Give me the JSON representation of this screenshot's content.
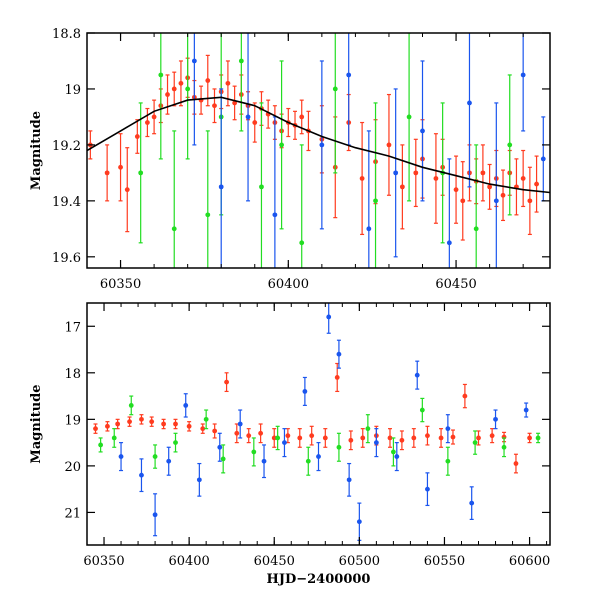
{
  "chart_data": [
    {
      "type": "scatter",
      "title": "",
      "xlabel": "",
      "ylabel": "Magnitude",
      "xlim": [
        60340,
        60478
      ],
      "ylim": [
        19.64,
        18.8
      ],
      "y_inverted": true,
      "xticks": [
        "60350",
        "60400",
        "60450"
      ],
      "yticks": [
        "18.8",
        "19",
        "19.2",
        "19.4",
        "19.6"
      ],
      "series": [
        {
          "color": "#ff3b1f",
          "points": [
            [
              60341,
              19.2,
              0.05
            ],
            [
              60346,
              19.3,
              0.1
            ],
            [
              60350,
              19.28,
              0.12
            ],
            [
              60352,
              19.36,
              0.15
            ],
            [
              60355,
              19.17,
              0.06
            ],
            [
              60358,
              19.12,
              0.05
            ],
            [
              60360,
              19.1,
              0.06
            ],
            [
              60362,
              19.06,
              0.06
            ],
            [
              60364,
              19.02,
              0.07
            ],
            [
              60366,
              19.0,
              0.06
            ],
            [
              60368,
              18.98,
              0.08
            ],
            [
              60370,
              18.96,
              0.07
            ],
            [
              60372,
              19.03,
              0.06
            ],
            [
              60374,
              19.04,
              0.05
            ],
            [
              60376,
              18.97,
              0.09
            ],
            [
              60378,
              19.06,
              0.06
            ],
            [
              60380,
              19.01,
              0.06
            ],
            [
              60382,
              18.98,
              0.08
            ],
            [
              60384,
              19.05,
              0.06
            ],
            [
              60386,
              19.02,
              0.07
            ],
            [
              60388,
              19.06,
              0.05
            ],
            [
              60390,
              19.12,
              0.07
            ],
            [
              60392,
              19.07,
              0.06
            ],
            [
              60394,
              19.09,
              0.05
            ],
            [
              60396,
              19.12,
              0.06
            ],
            [
              60398,
              19.15,
              0.06
            ],
            [
              60400,
              19.12,
              0.05
            ],
            [
              60402,
              19.13,
              0.05
            ],
            [
              60404,
              19.1,
              0.06
            ],
            [
              60406,
              19.15,
              0.07
            ],
            [
              60410,
              19.18,
              0.12
            ],
            [
              60414,
              19.28,
              0.18
            ],
            [
              60418,
              19.12,
              0.1
            ],
            [
              60422,
              19.32,
              0.2
            ],
            [
              60426,
              19.26,
              0.15
            ],
            [
              60430,
              19.2,
              0.18
            ],
            [
              60434,
              19.35,
              0.15
            ],
            [
              60438,
              19.3,
              0.12
            ],
            [
              60440,
              19.25,
              0.14
            ],
            [
              60444,
              19.32,
              0.16
            ],
            [
              60446,
              19.28,
              0.1
            ],
            [
              60450,
              19.36,
              0.12
            ],
            [
              60452,
              19.4,
              0.14
            ],
            [
              60454,
              19.3,
              0.1
            ],
            [
              60456,
              19.33,
              0.08
            ],
            [
              60458,
              19.3,
              0.1
            ],
            [
              60460,
              19.35,
              0.08
            ],
            [
              60462,
              19.32,
              0.1
            ],
            [
              60464,
              19.38,
              0.09
            ],
            [
              60466,
              19.3,
              0.08
            ],
            [
              60468,
              19.35,
              0.1
            ],
            [
              60470,
              19.32,
              0.1
            ],
            [
              60472,
              19.4,
              0.12
            ],
            [
              60474,
              19.34,
              0.1
            ]
          ]
        },
        {
          "color": "#22dd22",
          "points": [
            [
              60356,
              19.3,
              0.25
            ],
            [
              60362,
              18.95,
              0.3
            ],
            [
              60366,
              19.5,
              0.35
            ],
            [
              60370,
              19.0,
              0.25
            ],
            [
              60376,
              19.45,
              0.3
            ],
            [
              60380,
              19.1,
              0.35
            ],
            [
              60386,
              18.9,
              0.25
            ],
            [
              60392,
              19.35,
              0.3
            ],
            [
              60398,
              19.2,
              0.3
            ],
            [
              60404,
              19.55,
              0.35
            ],
            [
              60414,
              19.0,
              0.3
            ],
            [
              60426,
              19.4,
              0.35
            ],
            [
              60436,
              19.1,
              0.3
            ],
            [
              60446,
              19.3,
              0.25
            ],
            [
              60456,
              19.5,
              0.3
            ],
            [
              60466,
              19.2,
              0.25
            ]
          ]
        },
        {
          "color": "#1a55ee",
          "points": [
            [
              60372,
              18.9,
              0.3
            ],
            [
              60380,
              19.35,
              0.35
            ],
            [
              60388,
              19.1,
              0.3
            ],
            [
              60396,
              19.45,
              0.35
            ],
            [
              60410,
              19.2,
              0.3
            ],
            [
              60418,
              18.95,
              0.25
            ],
            [
              60424,
              19.5,
              0.35
            ],
            [
              60432,
              19.3,
              0.3
            ],
            [
              60440,
              19.15,
              0.25
            ],
            [
              60448,
              19.55,
              0.3
            ],
            [
              60454,
              19.05,
              0.3
            ],
            [
              60462,
              19.4,
              0.35
            ],
            [
              60470,
              18.95,
              0.2
            ],
            [
              60476,
              19.25,
              0.15
            ]
          ]
        }
      ],
      "model_curve": [
        [
          60340,
          19.22
        ],
        [
          60350,
          19.15
        ],
        [
          60360,
          19.08
        ],
        [
          60370,
          19.04
        ],
        [
          60380,
          19.03
        ],
        [
          60390,
          19.06
        ],
        [
          60400,
          19.12
        ],
        [
          60410,
          19.17
        ],
        [
          60420,
          19.21
        ],
        [
          60430,
          19.24
        ],
        [
          60440,
          19.28
        ],
        [
          60450,
          19.31
        ],
        [
          60460,
          19.34
        ],
        [
          60470,
          19.36
        ],
        [
          60478,
          19.37
        ]
      ]
    },
    {
      "type": "scatter",
      "title": "",
      "xlabel": "HJD−2400000",
      "ylabel": "Magnitude",
      "xlim": [
        60340,
        60612
      ],
      "ylim": [
        21.7,
        16.5
      ],
      "y_inverted": true,
      "xticks": [
        "60350",
        "60400",
        "60450",
        "60500",
        "60550",
        "60600"
      ],
      "yticks": [
        "17",
        "18",
        "19",
        "20",
        "21"
      ],
      "series": [
        {
          "color": "#ff3b1f",
          "points": [
            [
              60345,
              19.2,
              0.1
            ],
            [
              60352,
              19.15,
              0.1
            ],
            [
              60358,
              19.1,
              0.1
            ],
            [
              60365,
              19.05,
              0.1
            ],
            [
              60372,
              19.0,
              0.1
            ],
            [
              60378,
              19.05,
              0.1
            ],
            [
              60385,
              19.1,
              0.1
            ],
            [
              60392,
              19.1,
              0.1
            ],
            [
              60400,
              19.15,
              0.1
            ],
            [
              60408,
              19.2,
              0.1
            ],
            [
              60415,
              19.25,
              0.15
            ],
            [
              60422,
              18.2,
              0.2
            ],
            [
              60428,
              19.3,
              0.2
            ],
            [
              60435,
              19.35,
              0.15
            ],
            [
              60442,
              19.3,
              0.2
            ],
            [
              60450,
              19.4,
              0.2
            ],
            [
              60458,
              19.35,
              0.15
            ],
            [
              60465,
              19.4,
              0.2
            ],
            [
              60472,
              19.35,
              0.2
            ],
            [
              60480,
              19.4,
              0.2
            ],
            [
              60487,
              18.1,
              0.3
            ],
            [
              60495,
              19.45,
              0.2
            ],
            [
              60502,
              19.4,
              0.2
            ],
            [
              60510,
              19.35,
              0.2
            ],
            [
              60518,
              19.4,
              0.2
            ],
            [
              60525,
              19.45,
              0.2
            ],
            [
              60532,
              19.4,
              0.2
            ],
            [
              60540,
              19.35,
              0.2
            ],
            [
              60548,
              19.4,
              0.2
            ],
            [
              60555,
              19.38,
              0.15
            ],
            [
              60562,
              18.5,
              0.25
            ],
            [
              60570,
              19.4,
              0.15
            ],
            [
              60578,
              19.35,
              0.15
            ],
            [
              60585,
              19.38,
              0.1
            ],
            [
              60592,
              19.95,
              0.2
            ],
            [
              60600,
              19.4,
              0.1
            ]
          ]
        },
        {
          "color": "#22dd22",
          "points": [
            [
              60348,
              19.55,
              0.15
            ],
            [
              60356,
              19.4,
              0.2
            ],
            [
              60366,
              18.7,
              0.2
            ],
            [
              60380,
              19.8,
              0.25
            ],
            [
              60392,
              19.5,
              0.2
            ],
            [
              60410,
              19.0,
              0.2
            ],
            [
              60420,
              19.85,
              0.3
            ],
            [
              60438,
              19.7,
              0.3
            ],
            [
              60452,
              19.4,
              0.25
            ],
            [
              60470,
              19.9,
              0.3
            ],
            [
              60488,
              19.6,
              0.3
            ],
            [
              60505,
              19.2,
              0.3
            ],
            [
              60520,
              19.7,
              0.3
            ],
            [
              60537,
              18.8,
              0.25
            ],
            [
              60552,
              19.9,
              0.3
            ],
            [
              60568,
              19.5,
              0.25
            ],
            [
              60585,
              19.6,
              0.2
            ],
            [
              60605,
              19.4,
              0.1
            ]
          ]
        },
        {
          "color": "#1a55ee",
          "points": [
            [
              60360,
              19.8,
              0.3
            ],
            [
              60372,
              20.2,
              0.35
            ],
            [
              60380,
              21.05,
              0.45
            ],
            [
              60388,
              19.9,
              0.3
            ],
            [
              60398,
              18.7,
              0.25
            ],
            [
              60406,
              20.3,
              0.35
            ],
            [
              60418,
              19.6,
              0.3
            ],
            [
              60430,
              19.1,
              0.3
            ],
            [
              60444,
              19.9,
              0.35
            ],
            [
              60456,
              19.5,
              0.3
            ],
            [
              60468,
              18.4,
              0.3
            ],
            [
              60476,
              19.8,
              0.3
            ],
            [
              60482,
              16.8,
              0.35
            ],
            [
              60488,
              17.6,
              0.3
            ],
            [
              60494,
              20.3,
              0.35
            ],
            [
              60500,
              21.2,
              0.4
            ],
            [
              60510,
              19.5,
              0.3
            ],
            [
              60522,
              19.8,
              0.3
            ],
            [
              60534,
              18.05,
              0.3
            ],
            [
              60540,
              20.5,
              0.35
            ],
            [
              60552,
              19.2,
              0.3
            ],
            [
              60566,
              20.8,
              0.35
            ],
            [
              60580,
              19.0,
              0.2
            ],
            [
              60598,
              18.8,
              0.15
            ]
          ]
        }
      ]
    }
  ]
}
